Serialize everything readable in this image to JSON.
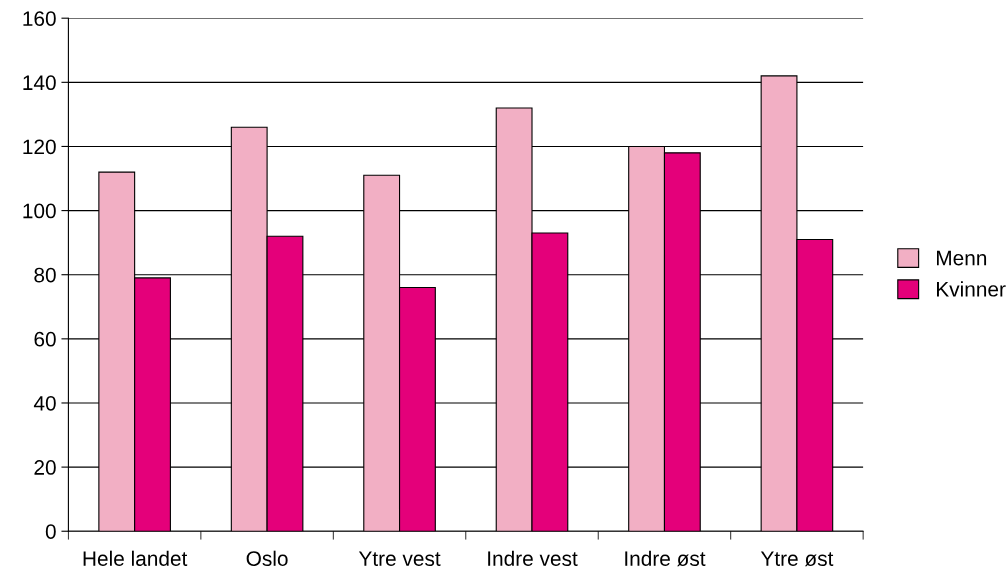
{
  "chart_data": {
    "type": "bar",
    "categories": [
      "Hele landet",
      "Oslo",
      "Ytre vest",
      "Indre vest",
      "Indre øst",
      "Ytre øst"
    ],
    "series": [
      {
        "name": "Menn",
        "color": "#f2afc4",
        "values": [
          112,
          126,
          111,
          132,
          120,
          142
        ]
      },
      {
        "name": "Kvinner",
        "color": "#e4007a",
        "values": [
          79,
          92,
          76,
          93,
          118,
          91
        ]
      }
    ],
    "ylim": [
      0,
      160
    ],
    "yticks": [
      0,
      20,
      40,
      60,
      80,
      100,
      120,
      140,
      160
    ],
    "grid": "y",
    "legend": "right"
  }
}
